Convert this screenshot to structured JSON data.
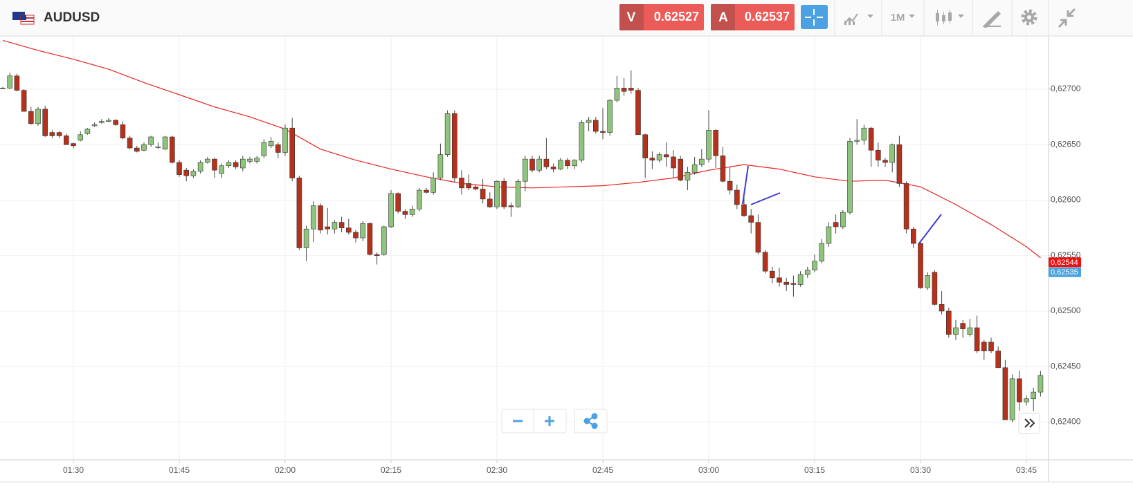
{
  "header": {
    "symbol": "AUDUSD",
    "sell": {
      "label": "V",
      "price": 0.62527
    },
    "buy": {
      "label": "A",
      "price": 0.62537
    },
    "timeframe": "1M"
  },
  "chart_data": {
    "type": "candlestick",
    "categories": [
      "01:20",
      "01:21",
      "01:22",
      "01:23",
      "01:24",
      "01:25",
      "01:26",
      "01:27",
      "01:28",
      "01:29",
      "01:30",
      "01:31",
      "01:32",
      "01:33",
      "01:34",
      "01:35",
      "01:36",
      "01:37",
      "01:38",
      "01:39",
      "01:40",
      "01:41",
      "01:42",
      "01:43",
      "01:44",
      "01:45",
      "01:46",
      "01:47",
      "01:48",
      "01:49",
      "01:50",
      "01:51",
      "01:52",
      "01:53",
      "01:54",
      "01:55",
      "01:56",
      "01:57",
      "01:58",
      "01:59",
      "02:00",
      "02:01",
      "02:02",
      "02:03",
      "02:04",
      "02:05",
      "02:06",
      "02:07",
      "02:08",
      "02:09",
      "02:10",
      "02:11",
      "02:12",
      "02:13",
      "02:14",
      "02:15",
      "02:16",
      "02:17",
      "02:18",
      "02:19",
      "02:20",
      "02:21",
      "02:22",
      "02:23",
      "02:24",
      "02:25",
      "02:26",
      "02:27",
      "02:28",
      "02:29",
      "02:30",
      "02:31",
      "02:32",
      "02:33",
      "02:34",
      "02:35",
      "02:36",
      "02:37",
      "02:38",
      "02:39",
      "02:40",
      "02:41",
      "02:42",
      "02:43",
      "02:44",
      "02:45",
      "02:46",
      "02:47",
      "02:48",
      "02:49",
      "02:50",
      "02:51",
      "02:52",
      "02:53",
      "02:54",
      "02:55",
      "02:56",
      "02:57",
      "02:58",
      "02:59",
      "03:00",
      "03:01",
      "03:02",
      "03:03",
      "03:04",
      "03:05",
      "03:06",
      "03:07",
      "03:08",
      "03:09",
      "03:10",
      "03:11",
      "03:12",
      "03:13",
      "03:14",
      "03:15",
      "03:16",
      "03:17",
      "03:18",
      "03:19",
      "03:20",
      "03:21",
      "03:22",
      "03:23",
      "03:24",
      "03:25",
      "03:26",
      "03:27",
      "03:28",
      "03:29",
      "03:30",
      "03:31",
      "03:32",
      "03:33",
      "03:34",
      "03:35",
      "03:36",
      "03:37",
      "03:38",
      "03:39",
      "03:40",
      "03:41",
      "03:42",
      "03:43",
      "03:44",
      "03:45",
      "03:46",
      "03:47"
    ],
    "ohlc": [
      [
        0.62701,
        0.62702,
        0.627,
        0.62701
      ],
      [
        0.62701,
        0.62715,
        0.627,
        0.62712
      ],
      [
        0.62712,
        0.62714,
        0.62698,
        0.62699
      ],
      [
        0.62699,
        0.627,
        0.6268,
        0.6268
      ],
      [
        0.6268,
        0.62684,
        0.62668,
        0.62669
      ],
      [
        0.62669,
        0.62684,
        0.62667,
        0.62682
      ],
      [
        0.62682,
        0.62685,
        0.62657,
        0.62658
      ],
      [
        0.62661,
        0.62663,
        0.62656,
        0.62658
      ],
      [
        0.62661,
        0.62662,
        0.62656,
        0.62658
      ],
      [
        0.62658,
        0.6266,
        0.6265,
        0.6265
      ],
      [
        0.62651,
        0.62652,
        0.62647,
        0.62649
      ],
      [
        0.62654,
        0.62662,
        0.62653,
        0.62659
      ],
      [
        0.6266,
        0.62665,
        0.62659,
        0.62664
      ],
      [
        0.62667,
        0.6267,
        0.62666,
        0.62668
      ],
      [
        0.6267,
        0.62673,
        0.62669,
        0.62671
      ],
      [
        0.62671,
        0.62674,
        0.6267,
        0.62672
      ],
      [
        0.62672,
        0.62673,
        0.62667,
        0.62668
      ],
      [
        0.62668,
        0.62671,
        0.62655,
        0.62656
      ],
      [
        0.62656,
        0.62658,
        0.62646,
        0.62647
      ],
      [
        0.62647,
        0.62649,
        0.62643,
        0.62644
      ],
      [
        0.62645,
        0.62652,
        0.62644,
        0.6265
      ],
      [
        0.6265,
        0.62658,
        0.62648,
        0.62657
      ],
      [
        0.62648,
        0.62652,
        0.62646,
        0.62648
      ],
      [
        0.62646,
        0.62658,
        0.62645,
        0.62657
      ],
      [
        0.62657,
        0.62658,
        0.62633,
        0.62634
      ],
      [
        0.62634,
        0.62636,
        0.62621,
        0.62623
      ],
      [
        0.62627,
        0.62629,
        0.62617,
        0.62622
      ],
      [
        0.62622,
        0.62628,
        0.6262,
        0.62626
      ],
      [
        0.62626,
        0.62636,
        0.62624,
        0.62634
      ],
      [
        0.62634,
        0.62639,
        0.62633,
        0.62637
      ],
      [
        0.62637,
        0.62638,
        0.6262,
        0.62627
      ],
      [
        0.62624,
        0.62633,
        0.6262,
        0.62631
      ],
      [
        0.62631,
        0.62636,
        0.62629,
        0.62634
      ],
      [
        0.62634,
        0.62636,
        0.62628,
        0.6263
      ],
      [
        0.62629,
        0.6264,
        0.62626,
        0.62637
      ],
      [
        0.62635,
        0.62639,
        0.62633,
        0.62637
      ],
      [
        0.62635,
        0.6264,
        0.62633,
        0.62638
      ],
      [
        0.6264,
        0.62655,
        0.62638,
        0.62652
      ],
      [
        0.62649,
        0.62657,
        0.62647,
        0.62653
      ],
      [
        0.6265,
        0.62652,
        0.62638,
        0.62643
      ],
      [
        0.62643,
        0.62668,
        0.6264,
        0.62665
      ],
      [
        0.62665,
        0.62674,
        0.62617,
        0.6262
      ],
      [
        0.6262,
        0.62622,
        0.62555,
        0.62557
      ],
      [
        0.62557,
        0.62577,
        0.62545,
        0.62574
      ],
      [
        0.62574,
        0.62599,
        0.62562,
        0.62595
      ],
      [
        0.62595,
        0.62597,
        0.6257,
        0.62573
      ],
      [
        0.62576,
        0.62593,
        0.62569,
        0.62574
      ],
      [
        0.62574,
        0.62582,
        0.6257,
        0.6258
      ],
      [
        0.6258,
        0.62585,
        0.62571,
        0.62575
      ],
      [
        0.62575,
        0.62583,
        0.62569,
        0.62571
      ],
      [
        0.62571,
        0.62573,
        0.62562,
        0.62566
      ],
      [
        0.62566,
        0.62581,
        0.62563,
        0.62579
      ],
      [
        0.62579,
        0.6258,
        0.6255,
        0.62551
      ],
      [
        0.62551,
        0.62553,
        0.62542,
        0.6255
      ],
      [
        0.62551,
        0.62577,
        0.6255,
        0.62576
      ],
      [
        0.62576,
        0.62609,
        0.62575,
        0.62606
      ],
      [
        0.62606,
        0.62607,
        0.62588,
        0.6259
      ],
      [
        0.6259,
        0.62592,
        0.62583,
        0.62587
      ],
      [
        0.62587,
        0.62595,
        0.62585,
        0.62592
      ],
      [
        0.62592,
        0.62611,
        0.6259,
        0.62609
      ],
      [
        0.62609,
        0.62611,
        0.62606,
        0.62607
      ],
      [
        0.62607,
        0.62625,
        0.62605,
        0.6262
      ],
      [
        0.6262,
        0.62651,
        0.62618,
        0.62641
      ],
      [
        0.62641,
        0.62681,
        0.62639,
        0.62678
      ],
      [
        0.62678,
        0.62681,
        0.62616,
        0.6262
      ],
      [
        0.6262,
        0.62627,
        0.62605,
        0.62611
      ],
      [
        0.62615,
        0.62623,
        0.62609,
        0.62611
      ],
      [
        0.62612,
        0.62614,
        0.62609,
        0.6261
      ],
      [
        0.6261,
        0.62619,
        0.62597,
        0.62601
      ],
      [
        0.62601,
        0.62607,
        0.62593,
        0.62594
      ],
      [
        0.62594,
        0.62618,
        0.62592,
        0.62617
      ],
      [
        0.62617,
        0.6262,
        0.62592,
        0.62594
      ],
      [
        0.62595,
        0.62598,
        0.62585,
        0.62594
      ],
      [
        0.62594,
        0.62619,
        0.62593,
        0.62617
      ],
      [
        0.62617,
        0.6264,
        0.62608,
        0.62637
      ],
      [
        0.62637,
        0.6264,
        0.62625,
        0.62627
      ],
      [
        0.62627,
        0.6264,
        0.62625,
        0.62637
      ],
      [
        0.62637,
        0.62656,
        0.62628,
        0.6263
      ],
      [
        0.6263,
        0.62633,
        0.62625,
        0.62628
      ],
      [
        0.62628,
        0.62638,
        0.62627,
        0.62636
      ],
      [
        0.62636,
        0.62638,
        0.62628,
        0.62631
      ],
      [
        0.62631,
        0.62637,
        0.62628,
        0.62636
      ],
      [
        0.62636,
        0.62672,
        0.62634,
        0.6267
      ],
      [
        0.6267,
        0.62675,
        0.62662,
        0.62672
      ],
      [
        0.62672,
        0.62675,
        0.6266,
        0.62662
      ],
      [
        0.62662,
        0.62683,
        0.62655,
        0.62661
      ],
      [
        0.62661,
        0.62691,
        0.62658,
        0.6269
      ],
      [
        0.6269,
        0.62712,
        0.62688,
        0.62701
      ],
      [
        0.62701,
        0.6271,
        0.62694,
        0.62698
      ],
      [
        0.62701,
        0.62717,
        0.62696,
        0.62699
      ],
      [
        0.62699,
        0.62701,
        0.62659,
        0.62659
      ],
      [
        0.62659,
        0.6266,
        0.6262,
        0.62638
      ],
      [
        0.62638,
        0.62644,
        0.62628,
        0.62636
      ],
      [
        0.62636,
        0.62643,
        0.62634,
        0.62641
      ],
      [
        0.62641,
        0.62652,
        0.6263,
        0.62639
      ],
      [
        0.62639,
        0.62645,
        0.6262,
        0.62629
      ],
      [
        0.62637,
        0.6264,
        0.62617,
        0.62618
      ],
      [
        0.62618,
        0.6263,
        0.62609,
        0.62625
      ],
      [
        0.62625,
        0.62639,
        0.62623,
        0.62632
      ],
      [
        0.62632,
        0.62646,
        0.6263,
        0.62637
      ],
      [
        0.62637,
        0.62681,
        0.62634,
        0.62663
      ],
      [
        0.62663,
        0.62664,
        0.62629,
        0.6264
      ],
      [
        0.6264,
        0.62648,
        0.62616,
        0.62617
      ],
      [
        0.62617,
        0.6263,
        0.62605,
        0.62609
      ],
      [
        0.62609,
        0.62614,
        0.62592,
        0.62596
      ],
      [
        0.62596,
        0.62604,
        0.62585,
        0.62586
      ],
      [
        0.62586,
        0.62592,
        0.6257,
        0.6258
      ],
      [
        0.6258,
        0.62587,
        0.62551,
        0.62553
      ],
      [
        0.62553,
        0.62555,
        0.62534,
        0.62536
      ],
      [
        0.62536,
        0.6254,
        0.62525,
        0.6253
      ],
      [
        0.6253,
        0.62539,
        0.62522,
        0.62526
      ],
      [
        0.62526,
        0.6253,
        0.62518,
        0.62524
      ],
      [
        0.62525,
        0.62532,
        0.62513,
        0.62524
      ],
      [
        0.62524,
        0.62536,
        0.62522,
        0.62533
      ],
      [
        0.62533,
        0.6254,
        0.6253,
        0.62537
      ],
      [
        0.62537,
        0.62551,
        0.62535,
        0.62545
      ],
      [
        0.62545,
        0.62565,
        0.62543,
        0.62561
      ],
      [
        0.62561,
        0.6258,
        0.62558,
        0.62576
      ],
      [
        0.6258,
        0.62587,
        0.6257,
        0.62576
      ],
      [
        0.62576,
        0.62591,
        0.62574,
        0.62589
      ],
      [
        0.62589,
        0.62656,
        0.62587,
        0.62653
      ],
      [
        0.62653,
        0.62673,
        0.6265,
        0.62654
      ],
      [
        0.62654,
        0.62668,
        0.6265,
        0.62665
      ],
      [
        0.62665,
        0.62666,
        0.6263,
        0.62645
      ],
      [
        0.62645,
        0.62652,
        0.6263,
        0.62636
      ],
      [
        0.62636,
        0.62638,
        0.6263,
        0.62634
      ],
      [
        0.62634,
        0.62651,
        0.62625,
        0.6265
      ],
      [
        0.6265,
        0.62658,
        0.62612,
        0.62615
      ],
      [
        0.62615,
        0.62617,
        0.6257,
        0.62574
      ],
      [
        0.62574,
        0.62576,
        0.62557,
        0.62561
      ],
      [
        0.62561,
        0.62563,
        0.6252,
        0.62521
      ],
      [
        0.62521,
        0.62535,
        0.62519,
        0.62532
      ],
      [
        0.62535,
        0.62537,
        0.62505,
        0.62506
      ],
      [
        0.62506,
        0.62518,
        0.62497,
        0.625
      ],
      [
        0.625,
        0.62503,
        0.62476,
        0.62479
      ],
      [
        0.62479,
        0.62492,
        0.62474,
        0.62485
      ],
      [
        0.62489,
        0.62492,
        0.62476,
        0.62484
      ],
      [
        0.62479,
        0.62493,
        0.62477,
        0.62485
      ],
      [
        0.62485,
        0.62496,
        0.62462,
        0.62464
      ],
      [
        0.62472,
        0.62474,
        0.62456,
        0.62464
      ],
      [
        0.62472,
        0.62476,
        0.62462,
        0.62464
      ],
      [
        0.62464,
        0.62468,
        0.62449,
        0.62449
      ],
      [
        0.62449,
        0.62456,
        0.62402,
        0.62402
      ],
      [
        0.62402,
        0.62443,
        0.624,
        0.62439
      ],
      [
        0.62439,
        0.62446,
        0.6241,
        0.62418
      ],
      [
        0.62418,
        0.62424,
        0.62415,
        0.62421
      ],
      [
        0.62421,
        0.62431,
        0.6241,
        0.62427
      ],
      [
        0.62427,
        0.62446,
        0.62423,
        0.62442
      ]
    ],
    "up_color": "#8fc47c",
    "down_color": "#b5311c",
    "moving_average": {
      "color": "#e8231f",
      "x": [
        "01:20",
        "01:25",
        "01:30",
        "01:35",
        "01:40",
        "01:45",
        "01:50",
        "01:55",
        "02:00",
        "02:05",
        "02:10",
        "02:15",
        "02:20",
        "02:25",
        "02:30",
        "02:35",
        "02:40",
        "02:45",
        "02:50",
        "02:55",
        "03:00",
        "03:05",
        "03:10",
        "03:15",
        "03:20",
        "03:25",
        "03:30",
        "03:35",
        "03:40",
        "03:45",
        "03:47"
      ],
      "values": [
        0.62744,
        0.62735,
        0.62727,
        0.62718,
        0.62706,
        0.62695,
        0.62684,
        0.62675,
        0.62664,
        0.62646,
        0.62636,
        0.62628,
        0.62621,
        0.62615,
        0.62612,
        0.62611,
        0.62612,
        0.62613,
        0.62616,
        0.6262,
        0.62627,
        0.62632,
        0.62628,
        0.62621,
        0.62617,
        0.62618,
        0.62612,
        0.62596,
        0.62578,
        0.62558,
        0.62548
      ]
    },
    "ylim": [
      0.62366,
      0.62748
    ],
    "yticks": [
      {
        "value": 0.627,
        "label": "0,62700"
      },
      {
        "value": 0.6265,
        "label": "0,62650"
      },
      {
        "value": 0.626,
        "label": "0,62600"
      },
      {
        "value": 0.6255,
        "label": "0,62550"
      },
      {
        "value": 0.625,
        "label": "0,62500"
      },
      {
        "value": 0.6245,
        "label": "0,62450"
      },
      {
        "value": 0.624,
        "label": "0,62400"
      }
    ],
    "xticks": [
      "01:30",
      "01:45",
      "02:00",
      "02:15",
      "02:30",
      "02:45",
      "03:00",
      "03:15",
      "03:30",
      "03:45"
    ],
    "price_tags": [
      {
        "value": 0.62544,
        "label": "0,62544",
        "color": "#ee1111"
      },
      {
        "value": 0.62535,
        "label": "0,62535",
        "color": "#4aa3df"
      }
    ],
    "grid": true
  }
}
